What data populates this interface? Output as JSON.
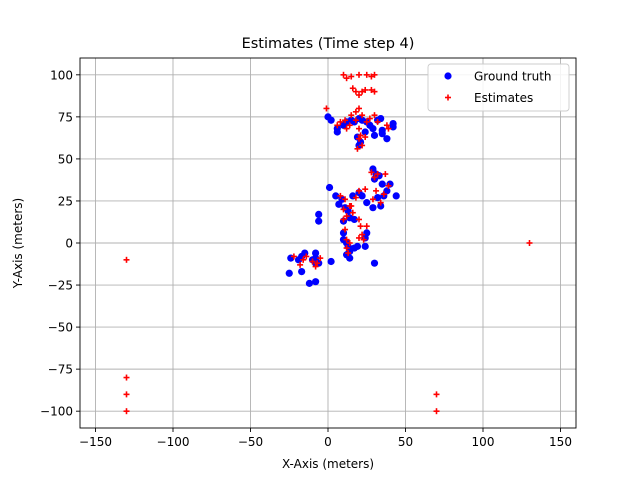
{
  "chart_data": {
    "type": "scatter",
    "title": "Estimates (Time step 4)",
    "xlabel": "X-Axis (meters)",
    "ylabel": "Y-Axis (meters)",
    "xlim": [
      -160,
      160
    ],
    "ylim": [
      -110,
      110
    ],
    "xticks": [
      -150,
      -100,
      -50,
      0,
      50,
      100,
      150
    ],
    "yticks": [
      -100,
      -75,
      -50,
      -25,
      0,
      25,
      50,
      75,
      100
    ],
    "xtick_labels": [
      "−150",
      "−100",
      "−50",
      "0",
      "50",
      "100",
      "150"
    ],
    "ytick_labels": [
      "−100",
      "−75",
      "−50",
      "−25",
      "0",
      "25",
      "50",
      "75",
      "100"
    ],
    "grid": true,
    "legend": "top-right",
    "series": [
      {
        "name": "Ground truth",
        "marker": "circle",
        "color": "#0000ff",
        "points": [
          [
            0,
            75
          ],
          [
            2,
            73
          ],
          [
            6,
            68
          ],
          [
            6,
            66
          ],
          [
            10,
            70
          ],
          [
            12,
            72
          ],
          [
            15,
            73
          ],
          [
            17,
            72
          ],
          [
            20,
            74
          ],
          [
            22,
            73
          ],
          [
            25,
            72
          ],
          [
            27,
            70
          ],
          [
            29,
            68
          ],
          [
            32,
            73
          ],
          [
            34,
            74
          ],
          [
            35,
            67
          ],
          [
            35,
            65
          ],
          [
            38,
            62
          ],
          [
            42,
            71
          ],
          [
            42,
            69
          ],
          [
            19,
            63
          ],
          [
            21,
            60
          ],
          [
            20,
            58
          ],
          [
            24,
            66
          ],
          [
            30,
            64
          ],
          [
            1,
            33
          ],
          [
            5,
            28
          ],
          [
            9,
            26
          ],
          [
            7,
            23
          ],
          [
            11,
            21
          ],
          [
            13,
            19
          ],
          [
            16,
            28
          ],
          [
            20,
            30
          ],
          [
            22,
            28
          ],
          [
            25,
            24
          ],
          [
            29,
            44
          ],
          [
            31,
            41
          ],
          [
            30,
            38
          ],
          [
            33,
            40
          ],
          [
            35,
            35
          ],
          [
            38,
            31
          ],
          [
            40,
            35
          ],
          [
            44,
            28
          ],
          [
            34,
            22
          ],
          [
            29,
            21
          ],
          [
            32,
            27
          ],
          [
            36,
            28
          ],
          [
            -6,
            17
          ],
          [
            -6,
            13
          ],
          [
            14,
            15
          ],
          [
            17,
            14
          ],
          [
            10,
            13
          ],
          [
            10,
            6
          ],
          [
            10,
            2
          ],
          [
            12,
            0
          ],
          [
            13,
            -2
          ],
          [
            14,
            -5
          ],
          [
            12,
            -7
          ],
          [
            14,
            -9
          ],
          [
            17,
            -3
          ],
          [
            19,
            -2
          ],
          [
            24,
            -2
          ],
          [
            24,
            3
          ],
          [
            25,
            6
          ],
          [
            30,
            -12
          ],
          [
            2,
            -11
          ],
          [
            -8,
            -6
          ],
          [
            -8,
            -9
          ],
          [
            -10,
            -10
          ],
          [
            -8,
            -12
          ],
          [
            -6,
            -12
          ],
          [
            -15,
            -6
          ],
          [
            -17,
            -8
          ],
          [
            -19,
            -10
          ],
          [
            -24,
            -9
          ],
          [
            -25,
            -18
          ],
          [
            -17,
            -17
          ],
          [
            -12,
            -24
          ],
          [
            -8,
            -23
          ]
        ]
      },
      {
        "name": "Estimates",
        "marker": "plus",
        "color": "#ff0000",
        "points": [
          [
            10,
            100
          ],
          [
            12,
            98
          ],
          [
            15,
            99
          ],
          [
            20,
            100
          ],
          [
            25,
            100
          ],
          [
            28,
            99
          ],
          [
            30,
            100
          ],
          [
            16,
            92
          ],
          [
            18,
            90
          ],
          [
            22,
            90
          ],
          [
            24,
            91
          ],
          [
            28,
            91
          ],
          [
            30,
            90
          ],
          [
            20,
            88
          ],
          [
            -1,
            80
          ],
          [
            6,
            70
          ],
          [
            8,
            72
          ],
          [
            11,
            73
          ],
          [
            12,
            68
          ],
          [
            15,
            76
          ],
          [
            18,
            78
          ],
          [
            20,
            80
          ],
          [
            22,
            76
          ],
          [
            25,
            72
          ],
          [
            27,
            74
          ],
          [
            30,
            76
          ],
          [
            32,
            72
          ],
          [
            14,
            70
          ],
          [
            18,
            73
          ],
          [
            38,
            70
          ],
          [
            39,
            68
          ],
          [
            20,
            68
          ],
          [
            21,
            64
          ],
          [
            20,
            62
          ],
          [
            22,
            58
          ],
          [
            24,
            63
          ],
          [
            19,
            56
          ],
          [
            8,
            28
          ],
          [
            11,
            26
          ],
          [
            10,
            20
          ],
          [
            12,
            16
          ],
          [
            14,
            22
          ],
          [
            16,
            18
          ],
          [
            18,
            27
          ],
          [
            20,
            31
          ],
          [
            24,
            32
          ],
          [
            28,
            42
          ],
          [
            30,
            39
          ],
          [
            32,
            41
          ],
          [
            37,
            41
          ],
          [
            39,
            34
          ],
          [
            36,
            29
          ],
          [
            31,
            31
          ],
          [
            34,
            24
          ],
          [
            29,
            26
          ],
          [
            20,
            14
          ],
          [
            21,
            10
          ],
          [
            25,
            10
          ],
          [
            15,
            22
          ],
          [
            10,
            14
          ],
          [
            11,
            8
          ],
          [
            12,
            2
          ],
          [
            12,
            -3
          ],
          [
            13,
            -6
          ],
          [
            14,
            0
          ],
          [
            20,
            3
          ],
          [
            22,
            5
          ],
          [
            23,
            2
          ],
          [
            -5,
            -9
          ],
          [
            -7,
            -12
          ],
          [
            -10,
            -11
          ],
          [
            -8,
            -14
          ],
          [
            -14,
            -8
          ],
          [
            -16,
            -10
          ],
          [
            -18,
            -13
          ],
          [
            -22,
            -8
          ],
          [
            -130,
            -10
          ],
          [
            -130,
            -80
          ],
          [
            -130,
            -90
          ],
          [
            -130,
            -100
          ],
          [
            70,
            -90
          ],
          [
            70,
            -100
          ],
          [
            130,
            0
          ]
        ]
      }
    ]
  }
}
